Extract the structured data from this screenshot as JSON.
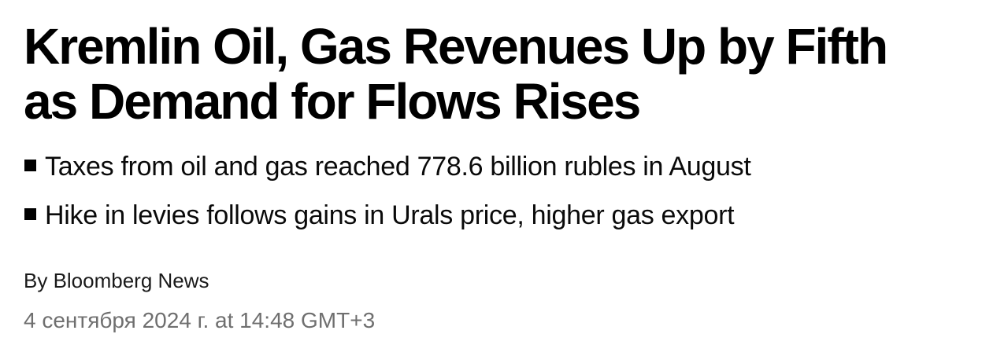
{
  "article": {
    "headline_lines": [
      "Kremlin Oil, Gas Revenues Up by Fifth",
      "as Demand for Flows Rises"
    ],
    "bullets": [
      "Taxes from oil and gas reached 778.6 billion rubles in August",
      "Hike in levies follows gains in Urals price, higher gas export"
    ],
    "byline": "By Bloomberg News",
    "timestamp": "4 сентября 2024 г. at 14:48 GMT+3"
  },
  "colors": {
    "background": "#ffffff",
    "headline": "#000000",
    "bullet_text": "#0a0a0a",
    "byline": "#1a1a1a",
    "timestamp": "#6f6f6f"
  }
}
